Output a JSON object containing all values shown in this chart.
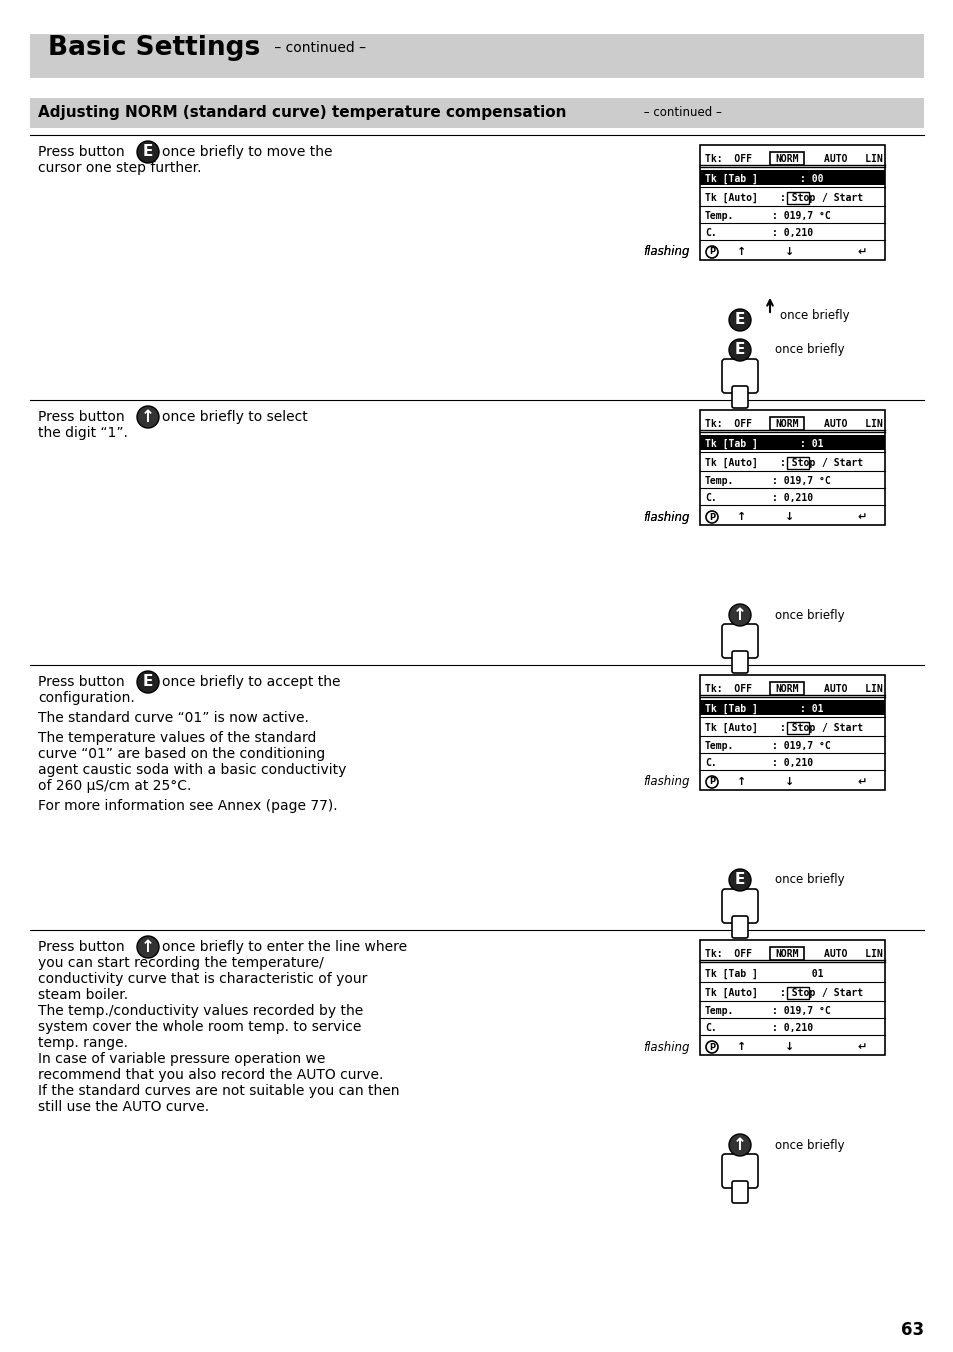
{
  "page_number": "63",
  "title": "Basic Settings",
  "title_suffix": " – continued –",
  "section_title": "Adjusting NORM (standard curve) temperature compensation",
  "section_suffix": " – continued –",
  "background_color": "#ffffff",
  "header_bg": "#cccccc",
  "section_bg": "#cccccc",
  "blocks": [
    {
      "left_text": [
        "Press button ",
        "E",
        " once briefly to move the",
        "cursor one step further."
      ],
      "button": "E",
      "flashing_label": "flashing",
      "display": {
        "row1": [
          "Tk:  OFF",
          "NORM",
          "AUTO   LIN"
        ],
        "row1_underline": "NORM",
        "row2_label": "Tk [Tab ]",
        "row2_value": ": 00",
        "row2_inverted": true,
        "row3_label": "Tk [Auto]",
        "row3_value": ": Stop/ Start",
        "row3_stop_underline": true,
        "row4_label": "Temp.",
        "row4_value": ": 019,7 °C",
        "row5_label": "C.",
        "row5_value": ": 0,210",
        "row6": [
          "P",
          "↑",
          "↓",
          "↵"
        ]
      },
      "button_label": "once briefly"
    },
    {
      "left_text": [
        "Press button ",
        "O",
        " once briefly to select",
        "the digit “1”."
      ],
      "button": "O",
      "flashing_label": "flashing",
      "display": {
        "row1": [
          "Tk:  OFF",
          "NORM",
          "AUTO   LIN"
        ],
        "row1_underline": "NORM",
        "row2_label": "Tk [Tab ]",
        "row2_value": ": 01",
        "row2_inverted": true,
        "row3_label": "Tk [Auto]",
        "row3_value": ": Stop/ Start",
        "row3_stop_underline": true,
        "row4_label": "Temp.",
        "row4_value": ": 019,7 °C",
        "row5_label": "C.",
        "row5_value": ": 0,210",
        "row6": [
          "P",
          "↑",
          "↓",
          "↵"
        ]
      },
      "button_label": "once briefly"
    },
    {
      "left_text": [
        "Press button ",
        "E",
        " once briefly to accept the",
        "configuration.",
        "",
        "The standard curve “01” is now active.",
        "",
        "The temperature values of the standard",
        "curve “01” are based on the conditioning",
        "agent caustic soda with a basic conductivity",
        "of 260 μS/cm at 25°C.",
        "",
        "For more information see Annex (page 77)."
      ],
      "button": "E",
      "flashing_label": "",
      "display": {
        "row1": [
          "Tk:  OFF",
          "NORM",
          "AUTO   LIN"
        ],
        "row1_underline": "NORM",
        "row2_label": "Tk [Tab ]",
        "row2_value": ": 01",
        "row2_inverted": true,
        "row3_label": "Tk [Auto]",
        "row3_value": ": Stop/ Start",
        "row3_stop_underline": true,
        "row4_label": "Temp.",
        "row4_value": ": 019,7 °C",
        "row5_label": "C.",
        "row5_value": ": 0,210",
        "row6": [
          "P",
          "↑",
          "↓",
          "↵"
        ]
      },
      "button_label": "once briefly"
    },
    {
      "left_text": [
        "Press button ",
        "O",
        " once briefly to enter the line where",
        "you can start recording the temperature/",
        "conductivity curve that is characteristic of your",
        "steam boiler.",
        "The temp./conductivity values recorded by the",
        "system cover the whole room temp. to service",
        "temp. range.",
        "In case of variable pressure operation we",
        "recommend that you also record the AUTO curve.",
        "If the standard curves are not suitable you can then",
        "still use the AUTO curve."
      ],
      "button": "O",
      "flashing_label": "",
      "display": {
        "row1": [
          "Tk:  OFF",
          "NORM",
          "AUTO   LIN"
        ],
        "row1_underline": "NORM",
        "row2_label": "Tk [Tab ]",
        "row2_value": "  01",
        "row2_inverted": false,
        "row3_label": "Tk [Auto]",
        "row3_value": ": Stop/ Start",
        "row3_stop_underline": true,
        "row4_label": "Temp.",
        "row4_value": ": 019,7 °C",
        "row5_label": "C.",
        "row5_value": ": 0,210",
        "row6": [
          "P",
          "↑",
          "↓",
          "↵"
        ]
      },
      "button_label": "once briefly"
    }
  ]
}
